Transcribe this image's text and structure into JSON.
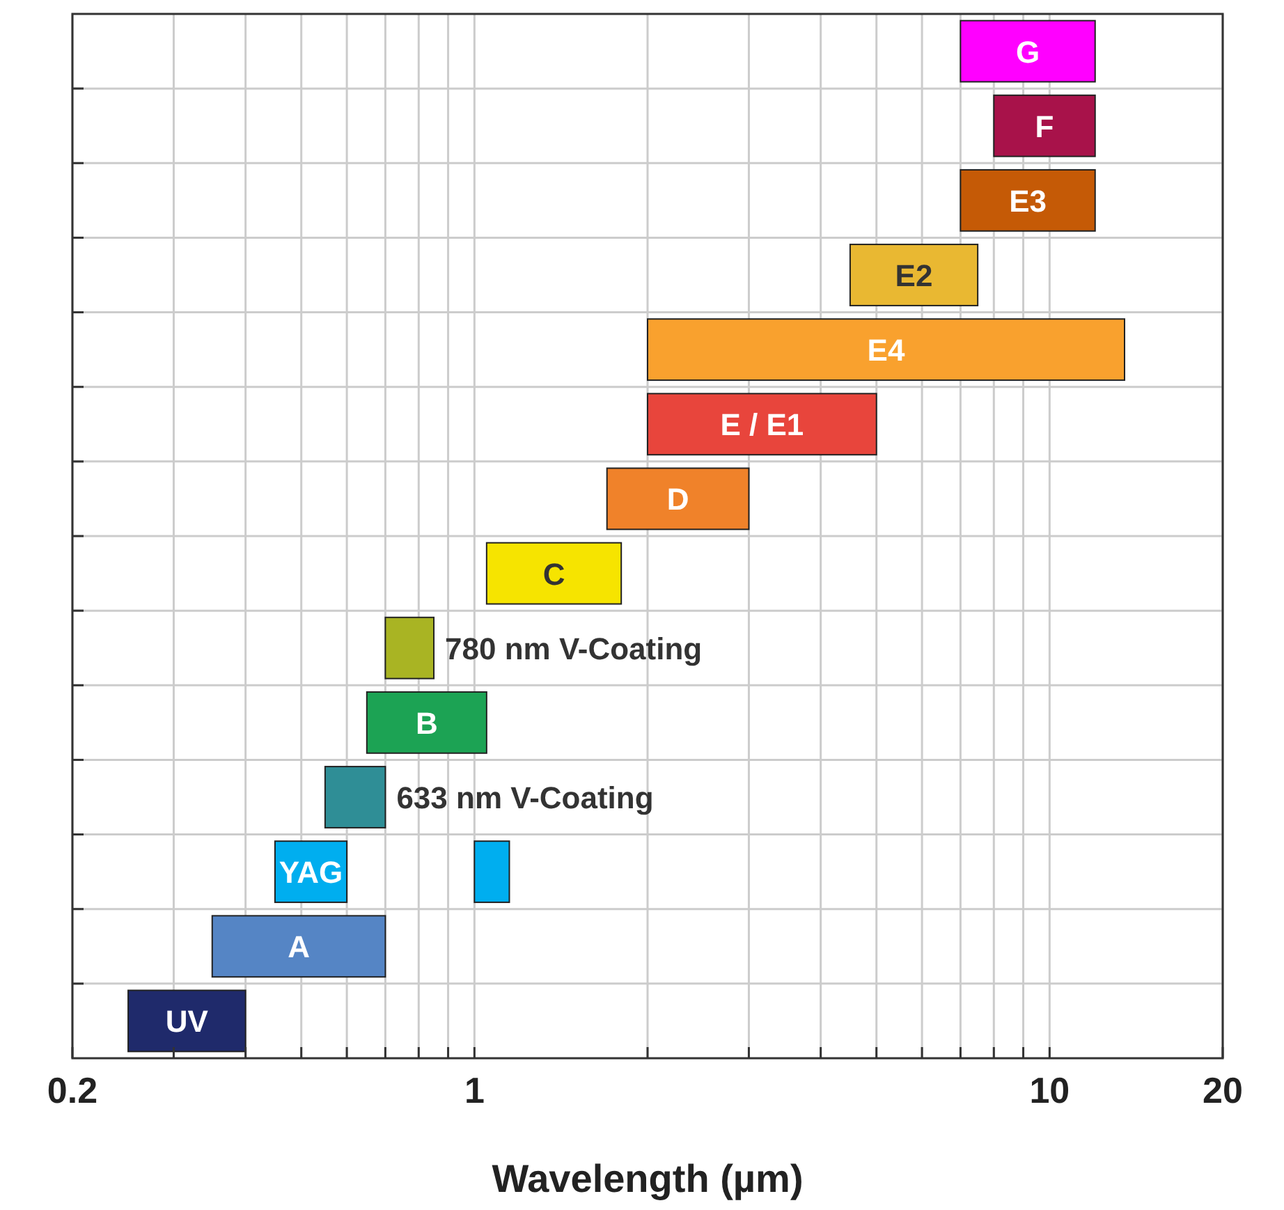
{
  "chart_data": {
    "type": "bar",
    "orientation": "horizontal",
    "xlabel": "Wavelength (µm)",
    "log": "x",
    "grid": true,
    "categories": [
      "G",
      "F",
      "E3",
      "E2",
      "E4",
      "E / E1",
      "D",
      "C",
      "780 nm V-Coating",
      "B",
      "633 nm V-Coating",
      "YAG",
      "A",
      "UV"
    ],
    "series": [
      {
        "base": [
          7,
          8,
          7,
          4.5,
          2,
          2,
          1.7,
          1.05,
          0.7,
          0.65,
          0.55,
          0.45,
          0.35,
          0.25
        ],
        "values": [
          5,
          4,
          5,
          3,
          11.5,
          3,
          1.3,
          0.75,
          0.15,
          0.4,
          0.15,
          0.15,
          0.35,
          0.15
        ],
        "colors": [
          "#ff00ff",
          "#a8124a",
          "#c55a06",
          "#e9b832",
          "#f9a12e",
          "#e8453c",
          "#f0822a",
          "#f6e400",
          "#a9b423",
          "#1ca354",
          "#2f8e96",
          "#00aeef",
          "#5585c5",
          "#1f2a6b"
        ]
      },
      {
        "base": [
          null,
          null,
          null,
          null,
          null,
          null,
          null,
          null,
          null,
          null,
          null,
          1.0,
          null,
          null
        ],
        "values": [
          null,
          null,
          null,
          null,
          null,
          null,
          null,
          null,
          null,
          null,
          null,
          0.15,
          null,
          null
        ],
        "colors": [
          null,
          null,
          null,
          null,
          null,
          null,
          null,
          null,
          null,
          null,
          null,
          "#00aeef",
          null,
          null
        ]
      }
    ],
    "xlim": [
      0.2,
      20
    ],
    "xticks": [
      {
        "value": 0.2,
        "label": "0.2"
      },
      {
        "value": 0.3,
        "label": null
      },
      {
        "value": 0.4,
        "label": null
      },
      {
        "value": 0.5,
        "label": null
      },
      {
        "value": 0.6,
        "label": null
      },
      {
        "value": 0.7,
        "label": null
      },
      {
        "value": 0.8,
        "label": null
      },
      {
        "value": 0.9,
        "label": null
      },
      1,
      {
        "value": 2,
        "label": null
      },
      {
        "value": 3,
        "label": null
      },
      {
        "value": 4,
        "label": null
      },
      {
        "value": 5,
        "label": null
      },
      {
        "value": 6,
        "label": null
      },
      {
        "value": 7,
        "label": null
      },
      {
        "value": 8,
        "label": null
      },
      {
        "value": 9,
        "label": null
      },
      10,
      20
    ]
  }
}
